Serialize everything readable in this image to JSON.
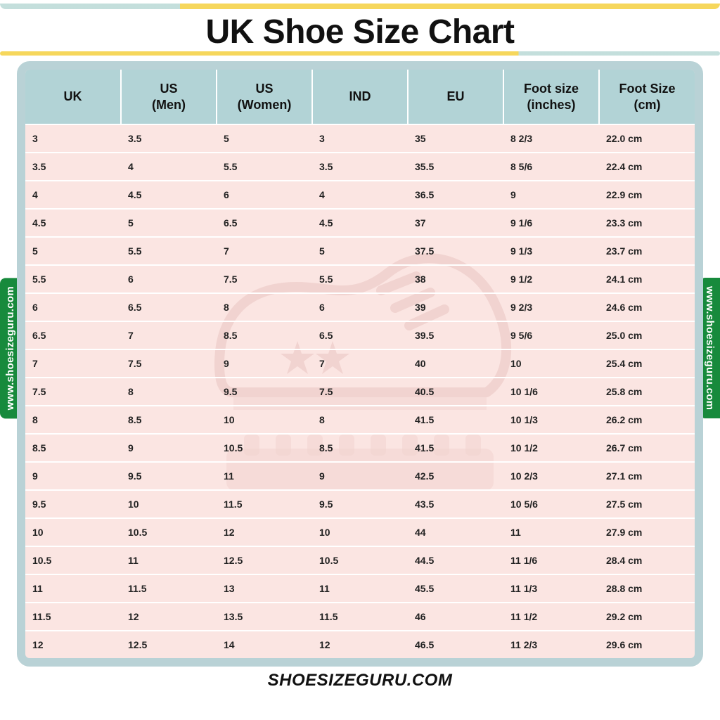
{
  "title": "UK Shoe Size Chart",
  "footer": "SHOESIZEGURU.COM",
  "side_tag_text": "www.shoesizeguru.com",
  "table": {
    "type": "table",
    "header_bg": "#b2d3d6",
    "body_bg": "#fbe5e2",
    "border_color": "#ffffff",
    "frame_color": "#b9d2d6",
    "header_fontsize": 18,
    "cell_fontsize": 14,
    "columns": [
      "UK",
      "US (Men)",
      "US (Women)",
      "IND",
      "EU",
      "Foot size (inches)",
      "Foot Size (cm)"
    ],
    "rows": [
      [
        "3",
        "3.5",
        "5",
        "3",
        "35",
        "8 2/3",
        "22.0 cm"
      ],
      [
        "3.5",
        "4",
        "5.5",
        "3.5",
        "35.5",
        "8 5/6",
        "22.4 cm"
      ],
      [
        "4",
        "4.5",
        "6",
        "4",
        "36.5",
        "9",
        "22.9 cm"
      ],
      [
        "4.5",
        "5",
        "6.5",
        "4.5",
        "37",
        "9 1/6",
        "23.3 cm"
      ],
      [
        "5",
        "5.5",
        "7",
        "5",
        "37.5",
        "9 1/3",
        "23.7 cm"
      ],
      [
        "5.5",
        "6",
        "7.5",
        "5.5",
        "38",
        "9 1/2",
        "24.1 cm"
      ],
      [
        "6",
        "6.5",
        "8",
        "6",
        "39",
        "9 2/3",
        "24.6 cm"
      ],
      [
        "6.5",
        "7",
        "8.5",
        "6.5",
        "39.5",
        "9 5/6",
        "25.0 cm"
      ],
      [
        "7",
        "7.5",
        "9",
        "7",
        "40",
        "10",
        "25.4 cm"
      ],
      [
        "7.5",
        "8",
        "9.5",
        "7.5",
        "40.5",
        "10 1/6",
        "25.8 cm"
      ],
      [
        "8",
        "8.5",
        "10",
        "8",
        "41.5",
        "10 1/3",
        "26.2 cm"
      ],
      [
        "8.5",
        "9",
        "10.5",
        "8.5",
        "41.5",
        "10 1/2",
        "26.7 cm"
      ],
      [
        "9",
        "9.5",
        "11",
        "9",
        "42.5",
        "10 2/3",
        "27.1 cm"
      ],
      [
        "9.5",
        "10",
        "11.5",
        "9.5",
        "43.5",
        "10 5/6",
        "27.5 cm"
      ],
      [
        "10",
        "10.5",
        "12",
        "10",
        "44",
        "11",
        "27.9 cm"
      ],
      [
        "10.5",
        "11",
        "12.5",
        "10.5",
        "44.5",
        "11 1/6",
        "28.4 cm"
      ],
      [
        "11",
        "11.5",
        "13",
        "11",
        "45.5",
        "11 1/3",
        "28.8 cm"
      ],
      [
        "11.5",
        "12",
        "13.5",
        "11.5",
        "46",
        "11 1/2",
        "29.2 cm"
      ],
      [
        "12",
        "12.5",
        "14",
        "12",
        "46.5",
        "11 2/3",
        "29.6 cm"
      ]
    ]
  },
  "accent": {
    "teal": "#b9d9d6",
    "yellow": "#f4d03f",
    "green": "#178a3c",
    "watermark_color": "#d9a7a2"
  }
}
